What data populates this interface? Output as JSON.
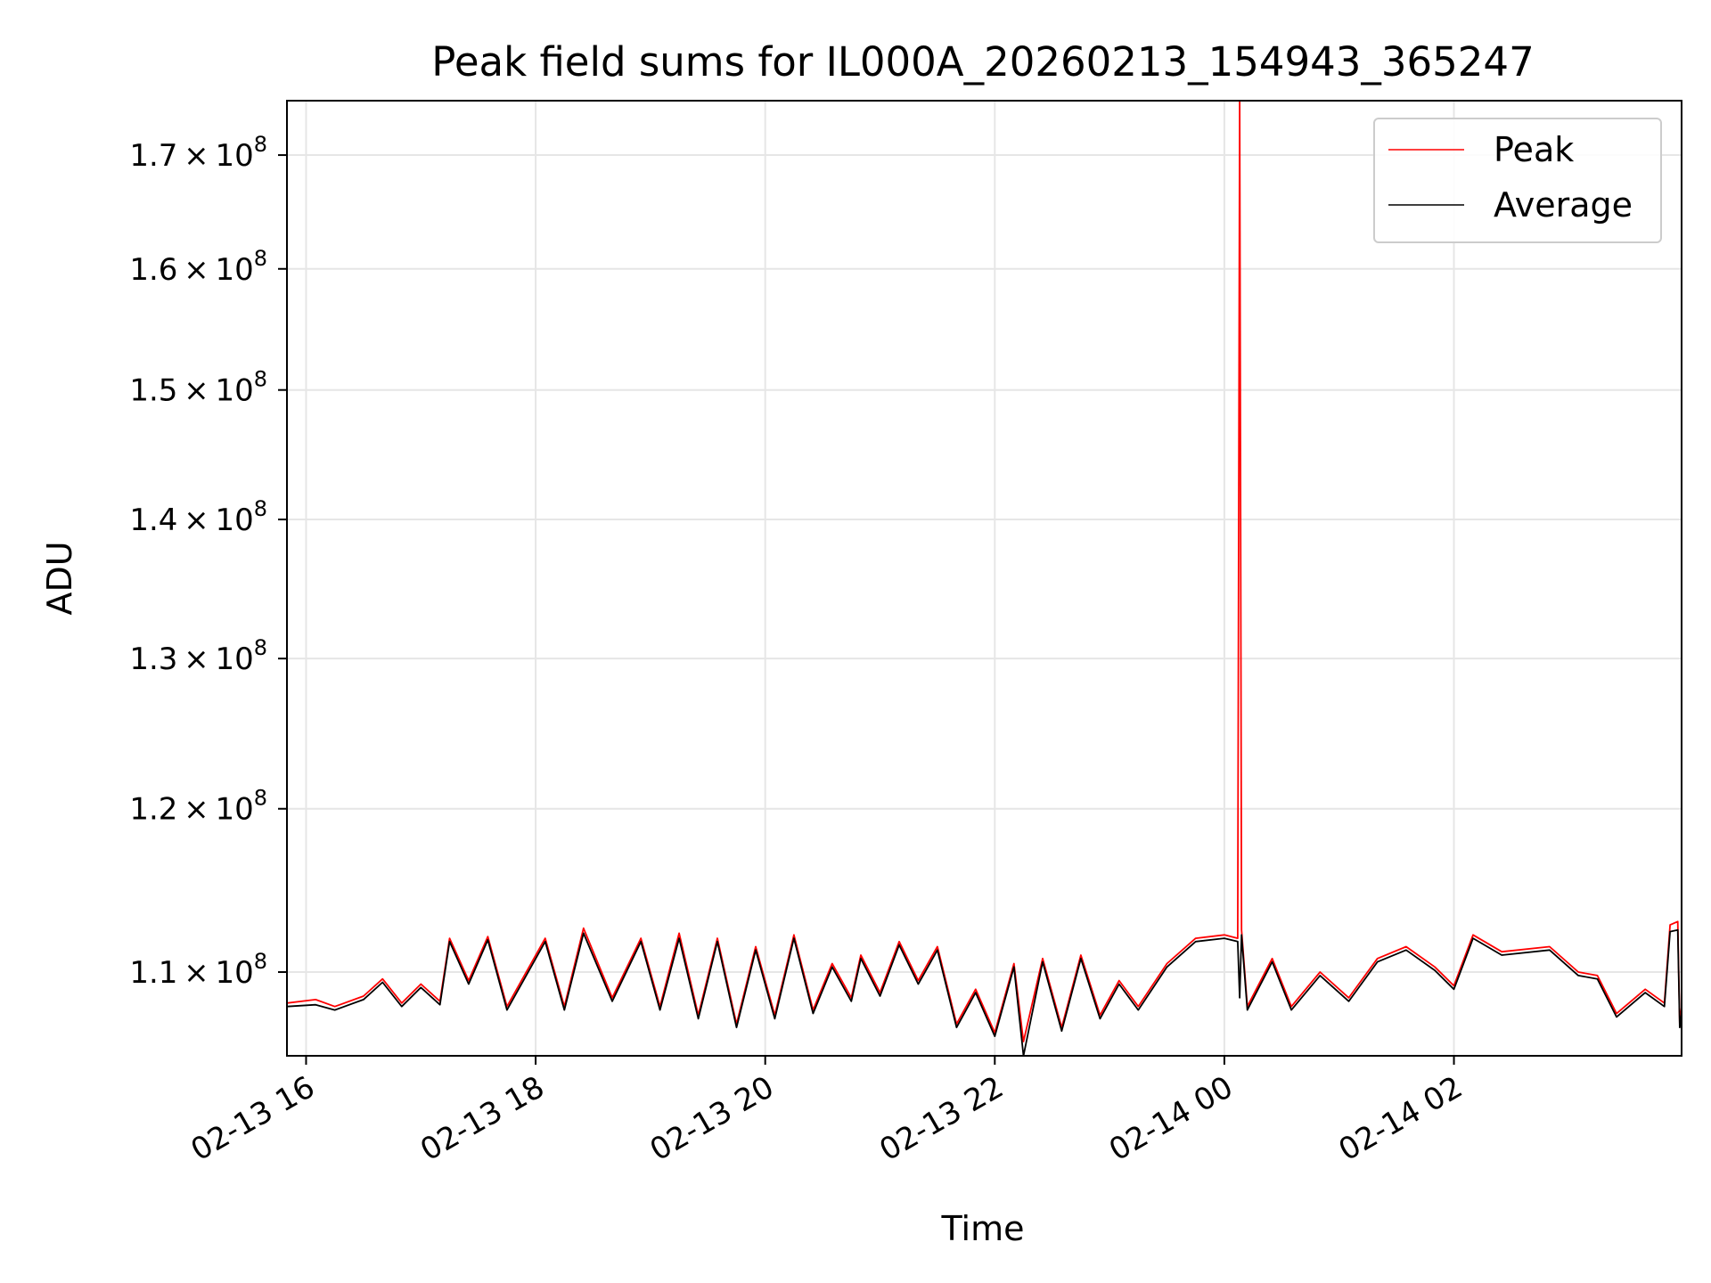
{
  "chart_data": {
    "type": "line",
    "title": "Peak field sums for IL000A_20260213_154943_365247",
    "xlabel": "Time",
    "ylabel": "ADU",
    "x_range": [
      "2026-02-13 15:50",
      "2026-02-14 03:59"
    ],
    "y_range": [
      105200000,
      175000000
    ],
    "y_scale": "log",
    "grid": true,
    "legend_position": "top-right",
    "x_ticks": [
      {
        "value": "2026-02-13 16:00",
        "label": "02-13 16"
      },
      {
        "value": "2026-02-13 18:00",
        "label": "02-13 18"
      },
      {
        "value": "2026-02-13 20:00",
        "label": "02-13 20"
      },
      {
        "value": "2026-02-13 22:00",
        "label": "02-13 22"
      },
      {
        "value": "2026-02-14 00:00",
        "label": "02-14 00"
      },
      {
        "value": "2026-02-14 02:00",
        "label": "02-14 02"
      }
    ],
    "y_ticks": [
      {
        "value": 110000000,
        "mantissa": "1.1",
        "exponent": "8"
      },
      {
        "value": 120000000,
        "mantissa": "1.2",
        "exponent": "8"
      },
      {
        "value": 130000000,
        "mantissa": "1.3",
        "exponent": "8"
      },
      {
        "value": 140000000,
        "mantissa": "1.4",
        "exponent": "8"
      },
      {
        "value": 150000000,
        "mantissa": "1.5",
        "exponent": "8"
      },
      {
        "value": 160000000,
        "mantissa": "1.6",
        "exponent": "8"
      },
      {
        "value": 170000000,
        "mantissa": "1.7",
        "exponent": "8"
      }
    ],
    "series": [
      {
        "name": "Peak",
        "color": "#ff0000",
        "points": [
          [
            "2026-02-13 15:50",
            108200000
          ],
          [
            "2026-02-13 16:05",
            108400000
          ],
          [
            "2026-02-13 16:15",
            108000000
          ],
          [
            "2026-02-13 16:30",
            108600000
          ],
          [
            "2026-02-13 16:40",
            109600000
          ],
          [
            "2026-02-13 16:50",
            108200000
          ],
          [
            "2026-02-13 17:00",
            109300000
          ],
          [
            "2026-02-13 17:10",
            108300000
          ],
          [
            "2026-02-13 17:15",
            112000000
          ],
          [
            "2026-02-13 17:25",
            109500000
          ],
          [
            "2026-02-13 17:35",
            112100000
          ],
          [
            "2026-02-13 17:45",
            108000000
          ],
          [
            "2026-02-13 18:05",
            112000000
          ],
          [
            "2026-02-13 18:15",
            108000000
          ],
          [
            "2026-02-13 18:25",
            112600000
          ],
          [
            "2026-02-13 18:40",
            108500000
          ],
          [
            "2026-02-13 18:55",
            112000000
          ],
          [
            "2026-02-13 19:05",
            108000000
          ],
          [
            "2026-02-13 19:15",
            112300000
          ],
          [
            "2026-02-13 19:25",
            107500000
          ],
          [
            "2026-02-13 19:35",
            112000000
          ],
          [
            "2026-02-13 19:45",
            107000000
          ],
          [
            "2026-02-13 19:55",
            111500000
          ],
          [
            "2026-02-13 20:05",
            107500000
          ],
          [
            "2026-02-13 20:15",
            112200000
          ],
          [
            "2026-02-13 20:25",
            107800000
          ],
          [
            "2026-02-13 20:35",
            110500000
          ],
          [
            "2026-02-13 20:45",
            108500000
          ],
          [
            "2026-02-13 20:50",
            111000000
          ],
          [
            "2026-02-13 21:00",
            108800000
          ],
          [
            "2026-02-13 21:10",
            111800000
          ],
          [
            "2026-02-13 21:20",
            109500000
          ],
          [
            "2026-02-13 21:30",
            111500000
          ],
          [
            "2026-02-13 21:40",
            107000000
          ],
          [
            "2026-02-13 21:50",
            109000000
          ],
          [
            "2026-02-13 22:00",
            106500000
          ],
          [
            "2026-02-13 22:10",
            110500000
          ],
          [
            "2026-02-13 22:15",
            106000000
          ],
          [
            "2026-02-13 22:25",
            110800000
          ],
          [
            "2026-02-13 22:35",
            106800000
          ],
          [
            "2026-02-13 22:45",
            111000000
          ],
          [
            "2026-02-13 22:55",
            107500000
          ],
          [
            "2026-02-13 23:05",
            109500000
          ],
          [
            "2026-02-13 23:15",
            108000000
          ],
          [
            "2026-02-13 23:30",
            110500000
          ],
          [
            "2026-02-13 23:45",
            112000000
          ],
          [
            "2026-02-14 00:00",
            112200000
          ],
          [
            "2026-02-14 00:07",
            112000000
          ],
          [
            "2026-02-14 00:08",
            175000000
          ],
          [
            "2026-02-14 00:09",
            112500000
          ],
          [
            "2026-02-14 00:12",
            108000000
          ],
          [
            "2026-02-14 00:25",
            110800000
          ],
          [
            "2026-02-14 00:35",
            108000000
          ],
          [
            "2026-02-14 00:50",
            110000000
          ],
          [
            "2026-02-14 01:05",
            108500000
          ],
          [
            "2026-02-14 01:20",
            110800000
          ],
          [
            "2026-02-14 01:35",
            111500000
          ],
          [
            "2026-02-14 01:50",
            110300000
          ],
          [
            "2026-02-14 02:00",
            109200000
          ],
          [
            "2026-02-14 02:10",
            112200000
          ],
          [
            "2026-02-14 02:25",
            111200000
          ],
          [
            "2026-02-14 02:50",
            111500000
          ],
          [
            "2026-02-14 03:05",
            110000000
          ],
          [
            "2026-02-14 03:15",
            109800000
          ],
          [
            "2026-02-14 03:25",
            107600000
          ],
          [
            "2026-02-14 03:40",
            109000000
          ],
          [
            "2026-02-14 03:50",
            108200000
          ],
          [
            "2026-02-14 03:53",
            112800000
          ],
          [
            "2026-02-14 03:57",
            113000000
          ],
          [
            "2026-02-14 03:58",
            107000000
          ],
          [
            "2026-02-14 03:59",
            108000000
          ]
        ]
      },
      {
        "name": "Average",
        "color": "#000000",
        "points": [
          [
            "2026-02-13 15:50",
            108000000
          ],
          [
            "2026-02-13 16:05",
            108100000
          ],
          [
            "2026-02-13 16:15",
            107800000
          ],
          [
            "2026-02-13 16:30",
            108400000
          ],
          [
            "2026-02-13 16:40",
            109400000
          ],
          [
            "2026-02-13 16:50",
            108000000
          ],
          [
            "2026-02-13 17:00",
            109100000
          ],
          [
            "2026-02-13 17:10",
            108100000
          ],
          [
            "2026-02-13 17:15",
            111800000
          ],
          [
            "2026-02-13 17:25",
            109300000
          ],
          [
            "2026-02-13 17:35",
            111900000
          ],
          [
            "2026-02-13 17:45",
            107800000
          ],
          [
            "2026-02-13 18:05",
            111800000
          ],
          [
            "2026-02-13 18:15",
            107800000
          ],
          [
            "2026-02-13 18:25",
            112300000
          ],
          [
            "2026-02-13 18:40",
            108300000
          ],
          [
            "2026-02-13 18:55",
            111800000
          ],
          [
            "2026-02-13 19:05",
            107800000
          ],
          [
            "2026-02-13 19:15",
            112000000
          ],
          [
            "2026-02-13 19:25",
            107300000
          ],
          [
            "2026-02-13 19:35",
            111800000
          ],
          [
            "2026-02-13 19:45",
            106800000
          ],
          [
            "2026-02-13 19:55",
            111300000
          ],
          [
            "2026-02-13 20:05",
            107300000
          ],
          [
            "2026-02-13 20:15",
            112000000
          ],
          [
            "2026-02-13 20:25",
            107600000
          ],
          [
            "2026-02-13 20:35",
            110300000
          ],
          [
            "2026-02-13 20:45",
            108300000
          ],
          [
            "2026-02-13 20:50",
            110800000
          ],
          [
            "2026-02-13 21:00",
            108600000
          ],
          [
            "2026-02-13 21:10",
            111600000
          ],
          [
            "2026-02-13 21:20",
            109300000
          ],
          [
            "2026-02-13 21:30",
            111300000
          ],
          [
            "2026-02-13 21:40",
            106800000
          ],
          [
            "2026-02-13 21:50",
            108800000
          ],
          [
            "2026-02-13 22:00",
            106300000
          ],
          [
            "2026-02-13 22:10",
            110300000
          ],
          [
            "2026-02-13 22:15",
            105200000
          ],
          [
            "2026-02-13 22:25",
            110600000
          ],
          [
            "2026-02-13 22:35",
            106600000
          ],
          [
            "2026-02-13 22:45",
            110800000
          ],
          [
            "2026-02-13 22:55",
            107300000
          ],
          [
            "2026-02-13 23:05",
            109300000
          ],
          [
            "2026-02-13 23:15",
            107800000
          ],
          [
            "2026-02-13 23:30",
            110300000
          ],
          [
            "2026-02-13 23:45",
            111800000
          ],
          [
            "2026-02-14 00:00",
            112000000
          ],
          [
            "2026-02-14 00:07",
            111800000
          ],
          [
            "2026-02-14 00:08",
            108500000
          ],
          [
            "2026-02-14 00:09",
            112200000
          ],
          [
            "2026-02-14 00:12",
            107800000
          ],
          [
            "2026-02-14 00:25",
            110600000
          ],
          [
            "2026-02-14 00:35",
            107800000
          ],
          [
            "2026-02-14 00:50",
            109800000
          ],
          [
            "2026-02-14 01:05",
            108300000
          ],
          [
            "2026-02-14 01:20",
            110600000
          ],
          [
            "2026-02-14 01:35",
            111300000
          ],
          [
            "2026-02-14 01:50",
            110100000
          ],
          [
            "2026-02-14 02:00",
            109000000
          ],
          [
            "2026-02-14 02:10",
            112000000
          ],
          [
            "2026-02-14 02:25",
            111000000
          ],
          [
            "2026-02-14 02:50",
            111300000
          ],
          [
            "2026-02-14 03:05",
            109800000
          ],
          [
            "2026-02-14 03:15",
            109600000
          ],
          [
            "2026-02-14 03:25",
            107400000
          ],
          [
            "2026-02-14 03:40",
            108800000
          ],
          [
            "2026-02-14 03:50",
            108000000
          ],
          [
            "2026-02-14 03:53",
            112400000
          ],
          [
            "2026-02-14 03:57",
            112500000
          ],
          [
            "2026-02-14 03:58",
            106800000
          ],
          [
            "2026-02-14 03:59",
            107600000
          ]
        ]
      }
    ]
  }
}
